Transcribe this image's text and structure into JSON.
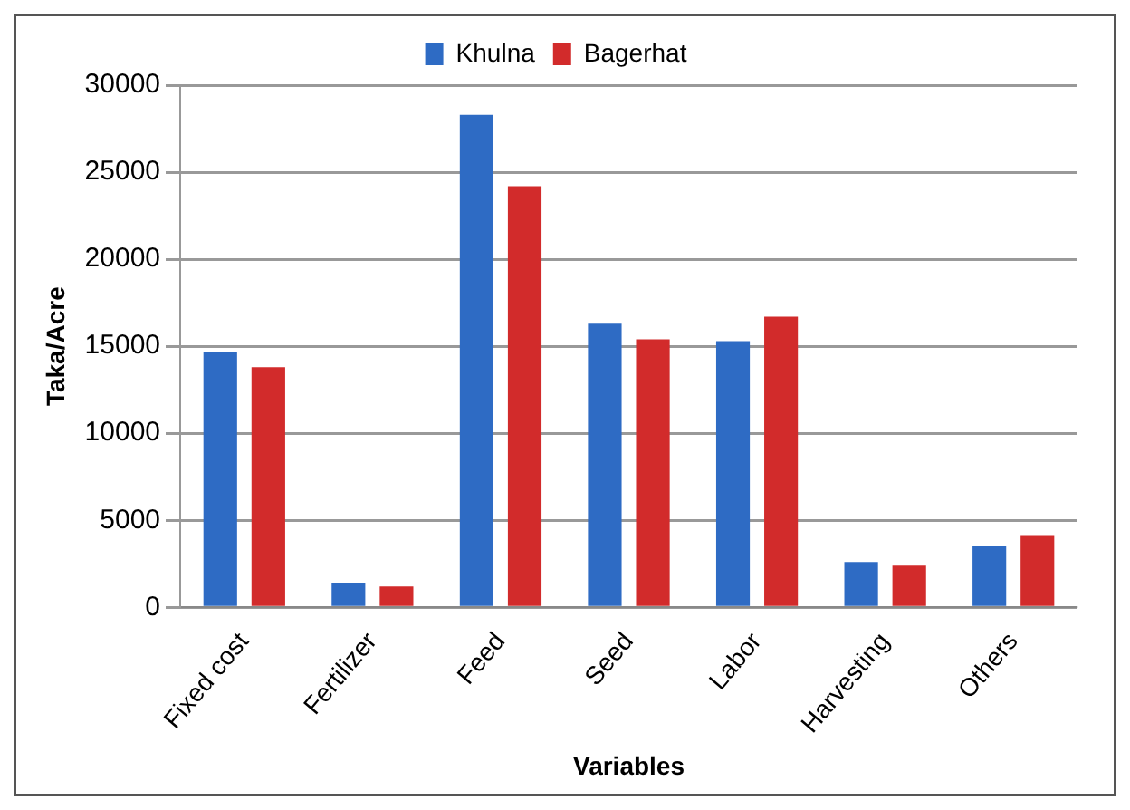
{
  "chart_data": {
    "type": "bar",
    "xlabel": "Variables",
    "ylabel": "Taka/Acre",
    "categories": [
      "Fixed cost",
      "Fertilizer",
      "Feed",
      "Seed",
      "Labor",
      "Harvesting",
      "Others"
    ],
    "series": [
      {
        "name": "Khulna",
        "color": "#2e6bc4",
        "values": [
          14700,
          1400,
          28300,
          16300,
          15300,
          2600,
          3500
        ]
      },
      {
        "name": "Bagerhat",
        "color": "#d22b2b",
        "values": [
          13800,
          1200,
          24200,
          15400,
          16700,
          2400,
          4100
        ]
      }
    ],
    "ylim": [
      0,
      30000
    ],
    "yticks": [
      0,
      5000,
      10000,
      15000,
      20000,
      25000,
      30000
    ],
    "grid": "y",
    "legend": "top"
  }
}
